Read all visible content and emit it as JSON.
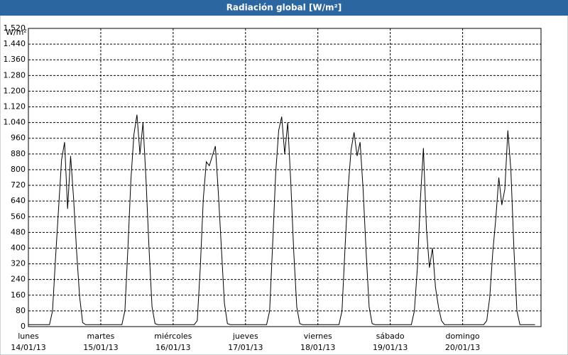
{
  "chart_data": {
    "type": "line",
    "title": "Radiación global [W/m²]",
    "y_label": "W/m²",
    "color": "#000000",
    "grid": true,
    "x": [
      0,
      1,
      2,
      3,
      4,
      5,
      6,
      7,
      8,
      9,
      10,
      11,
      12,
      13,
      14,
      15,
      16,
      17,
      18,
      19,
      20,
      21,
      22,
      23,
      24,
      25,
      26,
      27,
      28,
      29,
      30,
      31,
      32,
      33,
      34,
      35,
      36,
      37,
      38,
      39,
      40,
      41,
      42,
      43,
      44,
      45,
      46,
      47,
      48,
      49,
      50,
      51,
      52,
      53,
      54,
      55,
      56,
      57,
      58,
      59,
      60,
      61,
      62,
      63,
      64,
      65,
      66,
      67,
      68,
      69,
      70,
      71,
      72,
      73,
      74,
      75,
      76,
      77,
      78,
      79,
      80,
      81,
      82,
      83,
      84,
      85,
      86,
      87,
      88,
      89,
      90,
      91,
      92,
      93,
      94,
      95,
      96,
      97,
      98,
      99,
      100,
      101,
      102,
      103,
      104,
      105,
      106,
      107,
      108,
      109,
      110,
      111,
      112,
      113,
      114,
      115,
      116,
      117,
      118,
      119,
      120,
      121,
      122,
      123,
      124,
      125,
      126,
      127,
      128,
      129,
      130,
      131,
      132,
      133,
      134,
      135,
      136,
      137,
      138,
      139,
      140,
      141,
      142,
      143,
      144,
      145,
      146,
      147,
      148,
      149,
      150,
      151,
      152,
      153,
      154,
      155,
      156,
      157,
      158,
      159,
      160,
      161,
      162,
      163,
      164,
      165,
      166,
      167,
      168
    ],
    "values": [
      10,
      10,
      10,
      10,
      10,
      10,
      10,
      10,
      80,
      350,
      600,
      850,
      940,
      600,
      870,
      650,
      380,
      150,
      20,
      10,
      10,
      10,
      10,
      10,
      10,
      10,
      10,
      10,
      10,
      10,
      10,
      10,
      80,
      400,
      750,
      980,
      1080,
      880,
      1040,
      750,
      400,
      100,
      15,
      10,
      10,
      10,
      10,
      10,
      10,
      10,
      10,
      10,
      10,
      10,
      10,
      10,
      30,
      300,
      650,
      840,
      820,
      870,
      920,
      680,
      400,
      120,
      15,
      10,
      10,
      10,
      10,
      10,
      10,
      10,
      10,
      10,
      10,
      10,
      10,
      10,
      80,
      420,
      780,
      1000,
      1070,
      880,
      1040,
      740,
      380,
      100,
      15,
      10,
      10,
      10,
      10,
      10,
      10,
      10,
      10,
      10,
      10,
      10,
      10,
      10,
      80,
      400,
      700,
      900,
      990,
      870,
      940,
      700,
      380,
      100,
      15,
      10,
      10,
      10,
      10,
      10,
      10,
      10,
      10,
      10,
      10,
      10,
      10,
      10,
      80,
      300,
      650,
      910,
      500,
      300,
      400,
      200,
      100,
      30,
      10,
      10,
      10,
      10,
      10,
      10,
      10,
      10,
      10,
      10,
      10,
      10,
      10,
      10,
      30,
      150,
      380,
      550,
      760,
      620,
      700,
      1000,
      800,
      400,
      80,
      10,
      10,
      10,
      10,
      10,
      10
    ],
    "xlim": [
      0,
      170
    ],
    "xticks": [
      {
        "value": 0,
        "label": "lunes",
        "date": "14/01/13"
      },
      {
        "value": 24,
        "label": "martes",
        "date": "15/01/13"
      },
      {
        "value": 48,
        "label": "miércoles",
        "date": "16/01/13"
      },
      {
        "value": 72,
        "label": "jueves",
        "date": "17/01/13"
      },
      {
        "value": 96,
        "label": "viernes",
        "date": "18/01/13"
      },
      {
        "value": 120,
        "label": "sábado",
        "date": "19/01/13"
      },
      {
        "value": 144,
        "label": "domingo",
        "date": "20/01/13"
      }
    ],
    "ylim": [
      0,
      1520
    ],
    "yticks": [
      0,
      80,
      160,
      240,
      320,
      400,
      480,
      560,
      640,
      720,
      800,
      880,
      960,
      {
        "value": 1040,
        "label": "1.040"
      },
      {
        "value": 1120,
        "label": "1.120"
      },
      {
        "value": 1200,
        "label": "1.200"
      },
      {
        "value": 1280,
        "label": "1.280"
      },
      {
        "value": 1360,
        "label": "1.360"
      },
      {
        "value": 1440,
        "label": "1.440"
      },
      {
        "value": 1520,
        "label": "1.520"
      }
    ]
  }
}
